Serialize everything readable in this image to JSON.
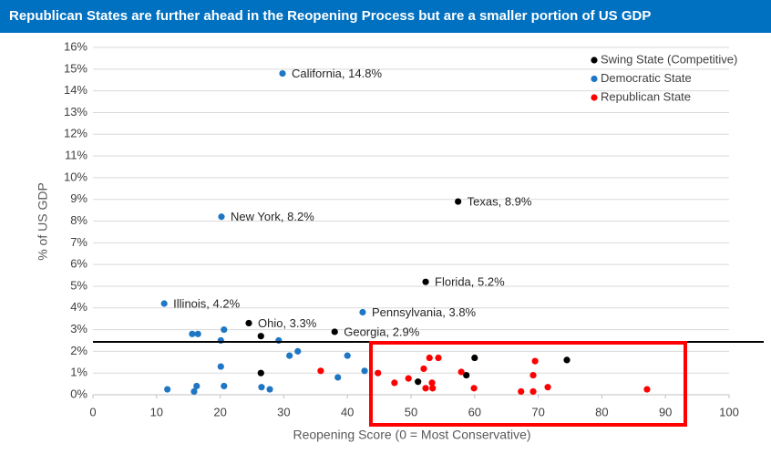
{
  "chart_data": {
    "type": "scatter",
    "title": "Republican States are further ahead in the Reopening Process but are a smaller portion of US GDP",
    "x_label": "Reopening Score (0 = Most Conservative)",
    "y_label": "% of US GDP",
    "xlim": [
      0,
      100
    ],
    "xticks": [
      0,
      10,
      20,
      30,
      40,
      50,
      60,
      70,
      80,
      90,
      100
    ],
    "ylim": [
      0,
      16
    ],
    "yticks": [
      {
        "value": 0,
        "label": "0%"
      },
      {
        "value": 1,
        "label": "1%"
      },
      {
        "value": 2,
        "label": "2%"
      },
      {
        "value": 3,
        "label": "3%"
      },
      {
        "value": 4,
        "label": "4%"
      },
      {
        "value": 5,
        "label": "5%"
      },
      {
        "value": 6,
        "label": "6%"
      },
      {
        "value": 7,
        "label": "7%"
      },
      {
        "value": 8,
        "label": "8%"
      },
      {
        "value": 9,
        "label": "9%"
      },
      {
        "value": 10,
        "label": "10%"
      },
      {
        "value": 11,
        "label": "11%"
      },
      {
        "value": 12,
        "label": "12%"
      },
      {
        "value": 13,
        "label": "13%"
      },
      {
        "value": 14,
        "label": "14%"
      },
      {
        "value": 15,
        "label": "15%"
      },
      {
        "value": 16,
        "label": "16%"
      }
    ],
    "grid": true,
    "legend": "top-right",
    "series": [
      {
        "name": "Swing State (Competitive)",
        "color": "#000000",
        "x": [
          57.4,
          52.3,
          24.5,
          38,
          26.4,
          26.4,
          51.1,
          58.7,
          60,
          74.5
        ],
        "values": [
          8.9,
          5.2,
          3.3,
          2.9,
          2.7,
          1.0,
          0.6,
          0.9,
          1.7,
          1.6
        ],
        "labels": [
          "Texas, 8.9%",
          "Florida, 5.2%",
          "Ohio, 3.3%",
          "Georgia, 2.9%",
          null,
          null,
          null,
          null,
          null,
          null
        ]
      },
      {
        "name": "Democratic State",
        "color": "#1f77c4",
        "x": [
          29.8,
          20.2,
          11.2,
          42.4,
          15.6,
          16.5,
          20.6,
          20.1,
          29.2,
          32.2,
          30.9,
          40.0,
          20.1,
          42.7,
          38.5,
          11.7,
          15.9,
          16.3,
          20.6,
          26.5,
          27.8
        ],
        "values": [
          14.8,
          8.2,
          4.2,
          3.8,
          2.8,
          2.8,
          3.0,
          2.5,
          2.5,
          2.0,
          1.8,
          1.8,
          1.3,
          1.1,
          0.8,
          0.25,
          0.15,
          0.4,
          0.4,
          0.35,
          0.25
        ],
        "labels": [
          "California, 14.8%",
          "New York, 8.2%",
          "Illinois, 4.2%",
          "Pennsylvania, 3.8%",
          null,
          null,
          null,
          null,
          null,
          null,
          null,
          null,
          null,
          null,
          null,
          null,
          null,
          null,
          null,
          null,
          null
        ]
      },
      {
        "name": "Republican State",
        "color": "#ff0000",
        "x": [
          35.8,
          44.8,
          47.4,
          49.6,
          52.0,
          52.9,
          54.3,
          53.3,
          52.3,
          53.4,
          57.9,
          59.9,
          69.5,
          69.2,
          67.3,
          69.2,
          71.5,
          87.1
        ],
        "values": [
          1.1,
          1.0,
          0.55,
          0.75,
          1.2,
          1.7,
          1.7,
          0.55,
          0.3,
          0.3,
          1.05,
          0.3,
          1.55,
          0.9,
          0.15,
          0.15,
          0.35,
          0.25
        ],
        "labels": [
          null,
          null,
          null,
          null,
          null,
          null,
          null,
          null,
          null,
          null,
          null,
          null,
          null,
          null,
          null,
          null,
          null,
          null
        ]
      }
    ]
  }
}
